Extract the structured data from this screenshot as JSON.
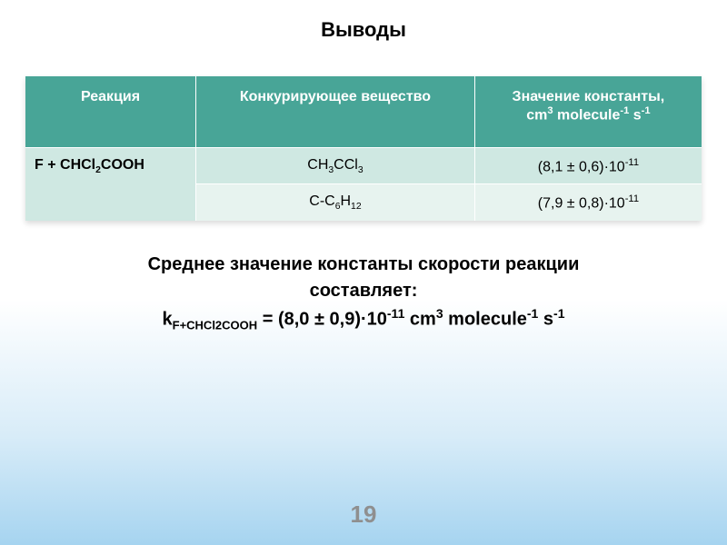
{
  "title": "Выводы",
  "table": {
    "header_bg": "#48a597",
    "header_fg": "#ffffff",
    "row_bg_1": "#cfe8e2",
    "row_bg_2": "#e7f3ef",
    "columns": [
      "Реакция",
      "Конкурирующее вещество",
      "Значение константы,\ncm³ molecule⁻¹ s⁻¹"
    ],
    "col_html": {
      "c0": "Реакция",
      "c1": "Конкурирующее вещество",
      "c2": "Значение константы,<br>cm<sup>3</sup> molecule<sup>-1</sup> s<sup>-1</sup>"
    },
    "rows": [
      {
        "reaction_html": "F + CHCl<sub>2</sub>COOH",
        "competitor_html": "CH<sub>3</sub>CCl<sub>3</sub>",
        "value_html": "(8,1 ± 0,6)·10<sup>-11</sup>"
      },
      {
        "reaction_html": "",
        "competitor_html": "C-C<sub>6</sub>H<sub>12</sub>",
        "value_html": "(7,9 ± 0,8)·10<sup>-11</sup>"
      }
    ]
  },
  "summary": {
    "line1": "Среднее значение константы скорости реакции",
    "line2": "составляет:",
    "line3_html": "k<sub>F+CHCl2COOH</sub> = (8,0 ± 0,9)·10<sup>-11</sup> cm<sup>3</sup> molecule<sup>-1</sup> s<sup>-1</sup>"
  },
  "page_number": "19"
}
